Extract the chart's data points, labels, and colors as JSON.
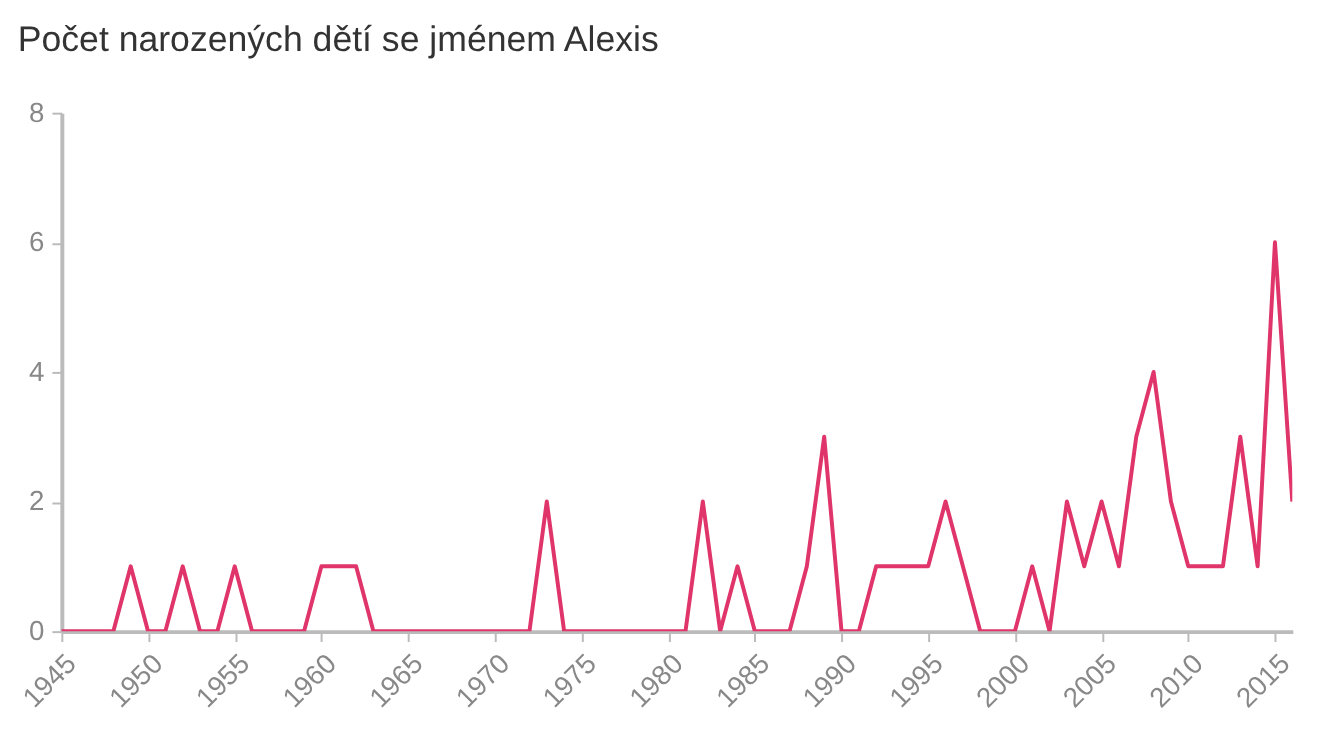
{
  "chart_data": {
    "type": "line",
    "title": "Počet narozených dětí se jménem Alexis",
    "x": [
      1945,
      1946,
      1947,
      1948,
      1949,
      1950,
      1951,
      1952,
      1953,
      1954,
      1955,
      1956,
      1957,
      1958,
      1959,
      1960,
      1961,
      1962,
      1963,
      1964,
      1965,
      1966,
      1967,
      1968,
      1969,
      1970,
      1971,
      1972,
      1973,
      1974,
      1975,
      1976,
      1977,
      1978,
      1979,
      1980,
      1981,
      1982,
      1983,
      1984,
      1985,
      1986,
      1987,
      1988,
      1989,
      1990,
      1991,
      1992,
      1993,
      1994,
      1995,
      1996,
      1997,
      1998,
      1999,
      2000,
      2001,
      2002,
      2003,
      2004,
      2005,
      2006,
      2007,
      2008,
      2009,
      2010,
      2011,
      2012,
      2013,
      2014,
      2015,
      2016
    ],
    "series": [
      {
        "color": "#e0356a",
        "values": [
          0,
          0,
          0,
          0,
          1,
          0,
          0,
          1,
          0,
          0,
          1,
          0,
          0,
          0,
          0,
          1,
          1,
          1,
          0,
          0,
          0,
          0,
          0,
          0,
          0,
          0,
          0,
          0,
          2,
          0,
          0,
          0,
          0,
          0,
          0,
          0,
          0,
          2,
          0,
          1,
          0,
          0,
          0,
          1,
          3,
          0,
          0,
          1,
          1,
          1,
          1,
          2,
          1,
          0,
          0,
          0,
          1,
          0,
          2,
          1,
          2,
          1,
          3,
          4,
          2,
          1,
          1,
          1,
          3,
          1,
          6,
          2
        ]
      }
    ],
    "xlim": [
      1945,
      2016
    ],
    "xticks": [
      1945,
      1950,
      1955,
      1960,
      1965,
      1970,
      1975,
      1980,
      1985,
      1990,
      1995,
      2000,
      2005,
      2010,
      2015
    ],
    "ylim": [
      0,
      8
    ],
    "yticks": [
      0,
      2,
      4,
      6,
      8
    ],
    "grid": false,
    "marker": "none",
    "line_style": "solid",
    "legend": false
  }
}
